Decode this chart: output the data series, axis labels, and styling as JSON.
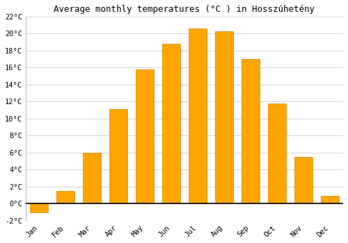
{
  "months": [
    "Jan",
    "Feb",
    "Mar",
    "Apr",
    "May",
    "Jun",
    "Jul",
    "Aug",
    "Sep",
    "Oct",
    "Nov",
    "Dec"
  ],
  "values": [
    -1.0,
    1.5,
    6.0,
    11.1,
    15.8,
    18.8,
    20.6,
    20.3,
    17.0,
    11.8,
    5.5,
    0.9
  ],
  "bar_color": "#FFA500",
  "bar_edge_color": "#CC8800",
  "title": "Average monthly temperatures (°C ) in Hosszúhetény",
  "ylim": [
    -2,
    22
  ],
  "yticks": [
    -2,
    0,
    2,
    4,
    6,
    8,
    10,
    12,
    14,
    16,
    18,
    20,
    22
  ],
  "background_color": "#ffffff",
  "grid_color": "#cccccc",
  "title_fontsize": 9,
  "tick_fontsize": 7.5,
  "font_family": "monospace",
  "bar_width": 0.7,
  "figsize": [
    5.0,
    3.5
  ],
  "dpi": 100
}
